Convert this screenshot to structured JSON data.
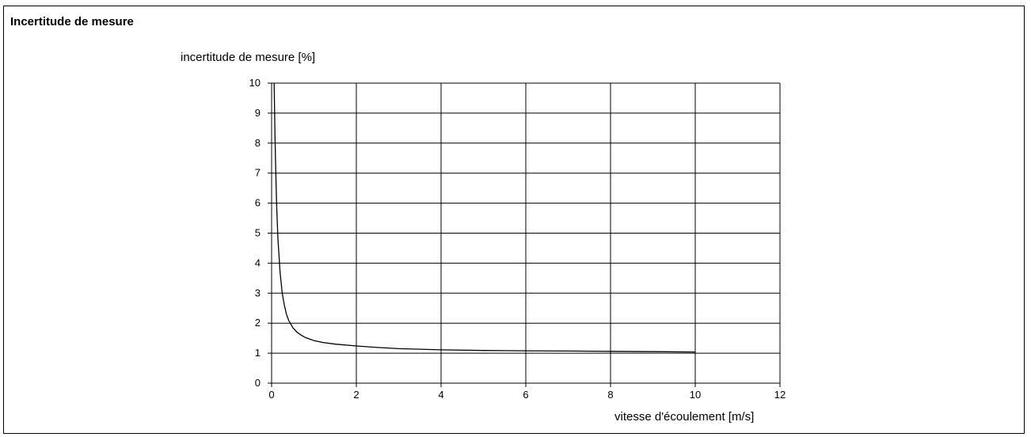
{
  "header": {
    "title": "Incertitude de mesure"
  },
  "chart_data": {
    "type": "line",
    "title": "",
    "ylabel": "incertitude de mesure [%]",
    "xlabel": "vitesse d'écoulement [m/s]",
    "xlim": [
      0,
      12
    ],
    "ylim": [
      0,
      10
    ],
    "xticks": [
      0,
      2,
      4,
      6,
      8,
      10,
      12
    ],
    "yticks": [
      0,
      1,
      2,
      3,
      4,
      5,
      6,
      7,
      8,
      9,
      10
    ],
    "grid": true,
    "series": [
      {
        "color": "#000000",
        "x": [
          0.06,
          0.08,
          0.1,
          0.12,
          0.15,
          0.2,
          0.25,
          0.3,
          0.35,
          0.4,
          0.5,
          0.6,
          0.7,
          0.8,
          1.0,
          1.2,
          1.5,
          2.0,
          2.5,
          3.0,
          4.0,
          5.0,
          6.0,
          7.0,
          8.0,
          9.0,
          10.0
        ],
        "y": [
          10.0,
          8.2,
          6.9,
          5.9,
          4.8,
          3.7,
          3.0,
          2.6,
          2.3,
          2.1,
          1.85,
          1.7,
          1.6,
          1.52,
          1.42,
          1.36,
          1.3,
          1.24,
          1.19,
          1.15,
          1.11,
          1.09,
          1.08,
          1.07,
          1.06,
          1.05,
          1.04
        ]
      }
    ]
  }
}
